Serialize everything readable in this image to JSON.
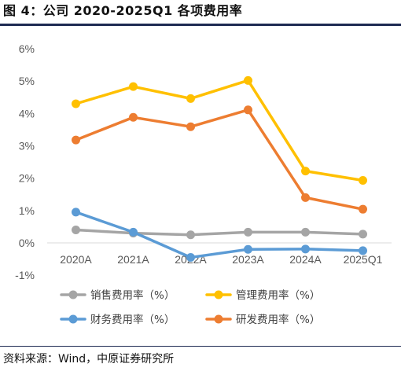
{
  "title": "图 4：公司 2020-2025Q1 各项费用率",
  "source": "资料来源：Wind，中原证券研究所",
  "chart_data": {
    "type": "line",
    "categories": [
      "2020A",
      "2021A",
      "2022A",
      "2023A",
      "2024A",
      "2025Q1"
    ],
    "y_ticks": [
      "6%",
      "5%",
      "4%",
      "3%",
      "2%",
      "1%",
      "0%",
      "-1%"
    ],
    "ylim": [
      -1,
      6
    ],
    "grid": false,
    "legend_position": "bottom",
    "series": [
      {
        "name": "销售费用率（%）",
        "color": "#a5a5a5",
        "values": [
          0.4,
          0.3,
          0.25,
          0.33,
          0.33,
          0.27
        ]
      },
      {
        "name": "管理费用率（%）",
        "color": "#ffc000",
        "values": [
          4.3,
          4.83,
          4.46,
          5.02,
          2.22,
          1.93
        ]
      },
      {
        "name": "财务费用率（%）",
        "color": "#5b9bd5",
        "values": [
          0.95,
          0.33,
          -0.45,
          -0.2,
          -0.19,
          -0.24
        ]
      },
      {
        "name": "研发费用率（%）",
        "color": "#ed7d31",
        "values": [
          3.18,
          3.88,
          3.59,
          4.11,
          1.4,
          1.04
        ]
      }
    ]
  }
}
